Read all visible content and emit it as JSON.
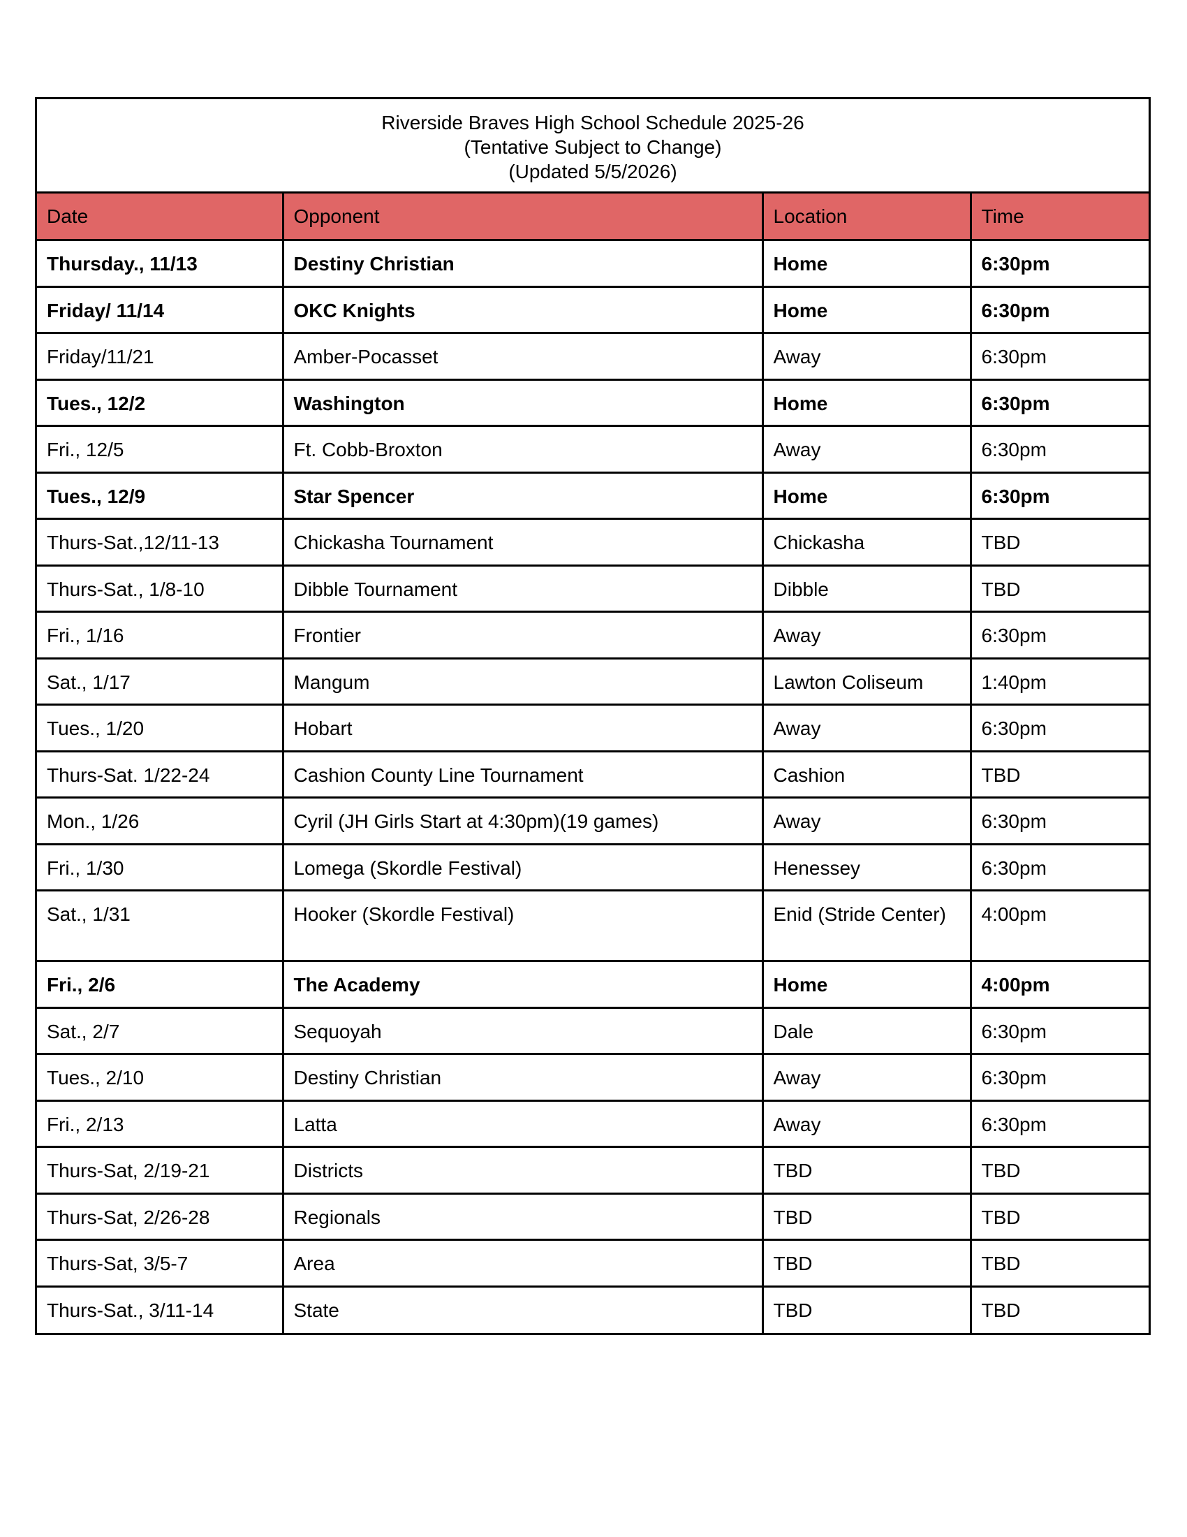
{
  "header": {
    "title": "Riverside Braves High School Schedule 2025-26",
    "subtitle": "(Tentative Subject to Change)",
    "updated": "(Updated 5/5/2026)"
  },
  "colors": {
    "header_bg": "#e06666"
  },
  "columns": [
    "Date",
    "Opponent",
    "Location",
    "Time"
  ],
  "rows": [
    {
      "date": "Thursday., 11/13",
      "opponent": "Destiny Christian",
      "location": "Home",
      "time": "6:30pm",
      "bold": true
    },
    {
      "date": "Friday/ 11/14",
      "opponent": "OKC Knights",
      "location": "Home",
      "time": "6:30pm",
      "bold": true
    },
    {
      "date": "Friday/11/21",
      "opponent": "Amber-Pocasset",
      "location": "Away",
      "time": "6:30pm",
      "bold": false
    },
    {
      "date": "Tues., 12/2",
      "opponent": "Washington",
      "location": "Home",
      "time": "6:30pm",
      "bold": true
    },
    {
      "date": "Fri., 12/5",
      "opponent": "Ft. Cobb-Broxton",
      "location": "Away",
      "time": "6:30pm",
      "bold": false
    },
    {
      "date": "Tues., 12/9",
      "opponent": "Star Spencer",
      "location": "Home",
      "time": "6:30pm",
      "bold": true
    },
    {
      "date": "Thurs-Sat.,12/11-13",
      "opponent": "Chickasha Tournament",
      "location": "Chickasha",
      "time": "TBD",
      "bold": false
    },
    {
      "date": "Thurs-Sat., 1/8-10",
      "opponent": "Dibble Tournament",
      "location": "Dibble",
      "time": "TBD",
      "bold": false
    },
    {
      "date": "Fri., 1/16",
      "opponent": "Frontier",
      "location": "Away",
      "time": "6:30pm",
      "bold": false
    },
    {
      "date": "Sat., 1/17",
      "opponent": "Mangum",
      "location": "Lawton Coliseum",
      "time": "1:40pm",
      "bold": false
    },
    {
      "date": "Tues., 1/20",
      "opponent": "Hobart",
      "location": "Away",
      "time": "6:30pm",
      "bold": false
    },
    {
      "date": "Thurs-Sat. 1/22-24",
      "opponent": "Cashion County Line Tournament",
      "location": "Cashion",
      "time": "TBD",
      "bold": false
    },
    {
      "date": "Mon., 1/26",
      "opponent": "Cyril (JH Girls Start at 4:30pm)(19 games)",
      "location": "Away",
      "time": "6:30pm",
      "bold": false
    },
    {
      "date": "Fri., 1/30",
      "opponent": "Lomega (Skordle Festival)",
      "location": "Henessey",
      "time": "6:30pm",
      "bold": false
    },
    {
      "date": "Sat., 1/31",
      "opponent": "Hooker (Skordle Festival)",
      "location": "Enid (Stride Center)",
      "time": "4:00pm",
      "bold": false
    },
    {
      "date": "Fri., 2/6",
      "opponent": "The Academy",
      "location": "Home",
      "time": "4:00pm",
      "bold": true
    },
    {
      "date": "Sat., 2/7",
      "opponent": "Sequoyah",
      "location": "Dale",
      "time": "6:30pm",
      "bold": false
    },
    {
      "date": "Tues., 2/10",
      "opponent": "Destiny Christian",
      "location": "Away",
      "time": "6:30pm",
      "bold": false
    },
    {
      "date": "Fri., 2/13",
      "opponent": "Latta",
      "location": "Away",
      "time": "6:30pm",
      "bold": false
    },
    {
      "date": "Thurs-Sat, 2/19-21",
      "opponent": "Districts",
      "location": "TBD",
      "time": "TBD",
      "bold": false
    },
    {
      "date": "Thurs-Sat, 2/26-28",
      "opponent": "Regionals",
      "location": "TBD",
      "time": "TBD",
      "bold": false
    },
    {
      "date": "Thurs-Sat, 3/5-7",
      "opponent": "Area",
      "location": "TBD",
      "time": "TBD",
      "bold": false
    },
    {
      "date": "Thurs-Sat., 3/11-14",
      "opponent": "State",
      "location": "TBD",
      "time": "TBD",
      "bold": false
    }
  ]
}
